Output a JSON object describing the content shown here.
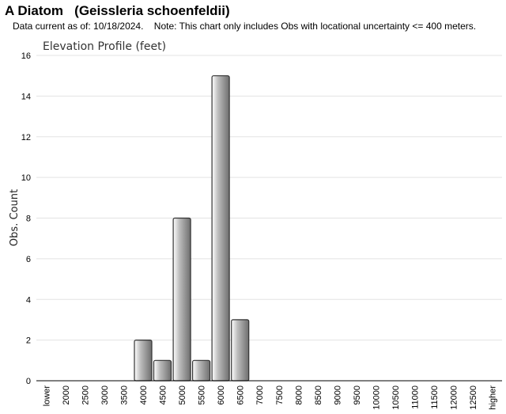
{
  "header": {
    "title": "A Diatom   (Geissleria schoenfeldii)",
    "subtitle": "Data current as of: 10/18/2024.    Note: This chart only includes Obs with locational uncertainty <= 400 meters."
  },
  "chart_data": {
    "type": "bar",
    "title": "Elevation Profile (feet)",
    "xlabel": "",
    "ylabel": "Obs. Count",
    "ylim": [
      0,
      16
    ],
    "yticks": [
      0,
      2,
      4,
      6,
      8,
      10,
      12,
      14,
      16
    ],
    "grid": true,
    "legend": "none",
    "categories": [
      "lower",
      "2000",
      "2500",
      "3000",
      "3500",
      "4000",
      "4500",
      "5000",
      "5500",
      "6000",
      "6500",
      "7000",
      "7500",
      "8000",
      "8500",
      "9000",
      "9500",
      "10000",
      "10500",
      "11000",
      "11500",
      "12000",
      "12500",
      "higher"
    ],
    "values": [
      0,
      0,
      0,
      0,
      0,
      2,
      1,
      8,
      1,
      15,
      3,
      0,
      0,
      0,
      0,
      0,
      0,
      0,
      0,
      0,
      0,
      0,
      0,
      0
    ],
    "colors": {
      "bar_light": "#ffffff",
      "bar_mid": "#bdbdbd",
      "bar_dark": "#6e6e6e",
      "bar_stroke": "#333333",
      "grid": "#e3e3e3",
      "axis": "#000000"
    }
  }
}
